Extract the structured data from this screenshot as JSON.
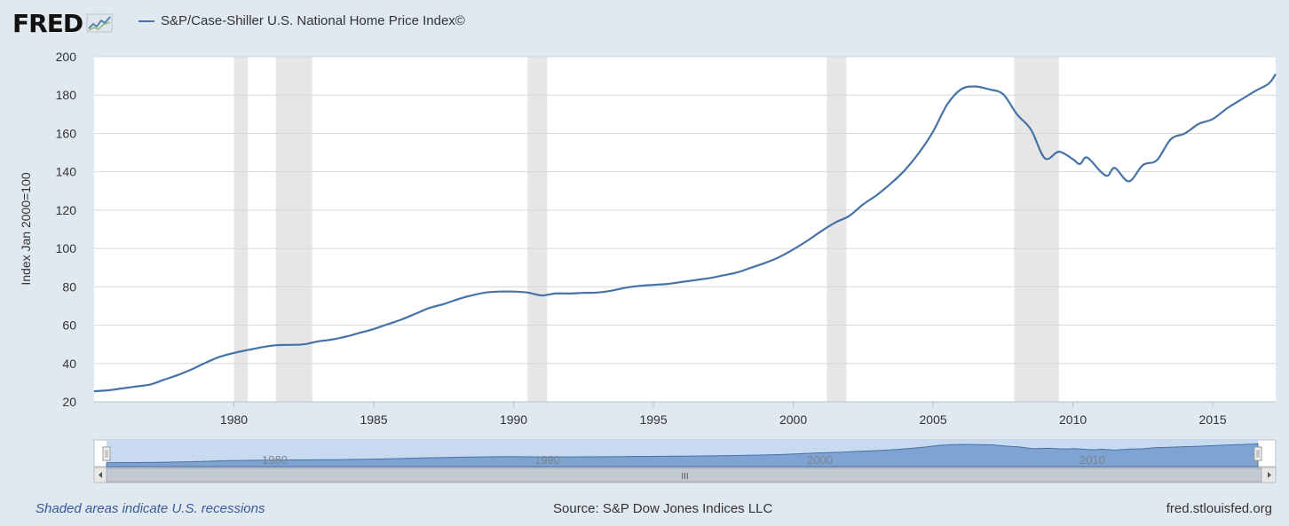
{
  "header": {
    "logo_text": "FRED",
    "logo_icon": "line-chart-icon",
    "legend_label": "S&P/Case-Shiller U.S. National Home Price Index©"
  },
  "colors": {
    "series": "#4572a7",
    "recession": "#e6e6e6",
    "background": "#e1e9f0",
    "plot": "#ffffff"
  },
  "chart_data": {
    "type": "line",
    "title": "",
    "xlabel": "",
    "ylabel": "Index Jan 2000=100",
    "xlim": [
      1975.0,
      2017.25
    ],
    "ylim": [
      20,
      200
    ],
    "yticks": [
      "20",
      "40",
      "60",
      "80",
      "100",
      "120",
      "140",
      "160",
      "180",
      "200"
    ],
    "xticks": [
      "1980",
      "1985",
      "1990",
      "1995",
      "2000",
      "2005",
      "2010",
      "2015"
    ],
    "grid": true,
    "legend_position": "top-left",
    "recessions": [
      [
        1980.0,
        1980.5
      ],
      [
        1981.5,
        1982.8
      ],
      [
        1990.5,
        1991.2
      ],
      [
        2001.2,
        2001.9
      ],
      [
        2007.9,
        2009.5
      ]
    ],
    "series": [
      {
        "name": "S&P/Case-Shiller U.S. National Home Price Index©",
        "x": [
          1975.0,
          1975.5,
          1976.0,
          1976.5,
          1977.0,
          1977.5,
          1978.0,
          1978.5,
          1979.0,
          1979.5,
          1980.0,
          1980.5,
          1981.0,
          1981.5,
          1982.0,
          1982.5,
          1983.0,
          1983.5,
          1984.0,
          1984.5,
          1985.0,
          1985.5,
          1986.0,
          1986.5,
          1987.0,
          1987.5,
          1988.0,
          1988.5,
          1989.0,
          1989.5,
          1990.0,
          1990.5,
          1991.0,
          1991.5,
          1992.0,
          1992.5,
          1993.0,
          1993.5,
          1994.0,
          1994.5,
          1995.0,
          1995.5,
          1996.0,
          1996.5,
          1997.0,
          1997.5,
          1998.0,
          1998.5,
          1999.0,
          1999.5,
          2000.0,
          2000.5,
          2001.0,
          2001.5,
          2002.0,
          2002.5,
          2003.0,
          2003.5,
          2004.0,
          2004.5,
          2005.0,
          2005.5,
          2006.0,
          2006.5,
          2007.0,
          2007.5,
          2008.0,
          2008.5,
          2009.0,
          2009.5,
          2010.0,
          2010.25,
          2010.5,
          2011.0,
          2011.25,
          2011.5,
          2012.0,
          2012.5,
          2013.0,
          2013.5,
          2014.0,
          2014.5,
          2015.0,
          2015.5,
          2016.0,
          2016.5,
          2017.0,
          2017.25
        ],
        "values": [
          25.5,
          26,
          27,
          28,
          29,
          31.5,
          34,
          37,
          40.5,
          43.5,
          45.5,
          47,
          48.5,
          49.5,
          49.7,
          50,
          51.5,
          52.5,
          54,
          56,
          58,
          60.5,
          63,
          66,
          69,
          71,
          73.5,
          75.5,
          77,
          77.5,
          77.5,
          77,
          75.5,
          76.5,
          76.5,
          76.8,
          77,
          78,
          79.5,
          80.5,
          81,
          81.5,
          82.5,
          83.5,
          84.5,
          86,
          87.5,
          90,
          92.5,
          95.5,
          99.5,
          104,
          109,
          113.5,
          117,
          123,
          128,
          134,
          141,
          150,
          161,
          175,
          183,
          184.5,
          183,
          180.5,
          170,
          162,
          147,
          150.5,
          146.5,
          144,
          147.5,
          140,
          138,
          142,
          135,
          143.5,
          146,
          157,
          160,
          165,
          167.5,
          173,
          177.5,
          182,
          186,
          191
        ]
      }
    ]
  },
  "navigator": {
    "labels": [
      "1980",
      "1990",
      "2000",
      "2010"
    ],
    "scroll_grip": "III"
  },
  "footer": {
    "note": "Shaded areas indicate U.S. recessions",
    "source": "Source: S&P Dow Jones Indices LLC",
    "site": "fred.stlouisfed.org"
  }
}
